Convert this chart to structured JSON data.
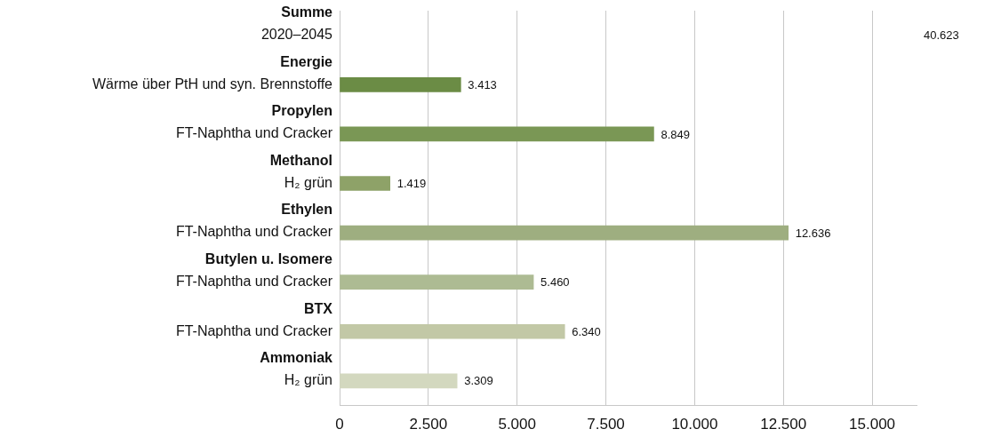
{
  "chart_data": {
    "type": "bar",
    "orientation": "horizontal",
    "categories": [
      "Summe\n2020–2045",
      "Energie\nWärme über PtH und syn. Brennstoffe",
      "Propylen\nFT-Naphtha und Cracker",
      "Methanol\nH₂ grün",
      "Ethylen\nFT-Naphtha und Cracker",
      "Butylen u. Isomere\nFT-Naphtha und Cracker",
      "BTX\nFT-Naphtha und Cracker",
      "Ammoniak\nH₂ grün"
    ],
    "values": [
      null,
      3413,
      8849,
      1419,
      12636,
      5460,
      6340,
      3309
    ],
    "value_labels": [
      "40.623",
      "3.413",
      "8.849",
      "1.419",
      "12.636",
      "5.460",
      "6.340",
      "3.309"
    ],
    "colors": [
      "#5e8238",
      "#6b8c45",
      "#7a9755",
      "#8ea268",
      "#9eae80",
      "#adbb93",
      "#c2c8a6",
      "#d3d8bf"
    ],
    "xlim": [
      0,
      16250
    ],
    "xticks": [
      0,
      {
        "value": 2500,
        "label": "2.500"
      },
      {
        "value": 5000,
        "label": "5.000"
      },
      {
        "value": 7500,
        "label": "7.500"
      },
      {
        "value": 10000,
        "label": "10.000"
      },
      {
        "value": 12500,
        "label": "12.500"
      },
      {
        "value": 15000,
        "label": "15.000"
      }
    ],
    "grid": "x"
  }
}
